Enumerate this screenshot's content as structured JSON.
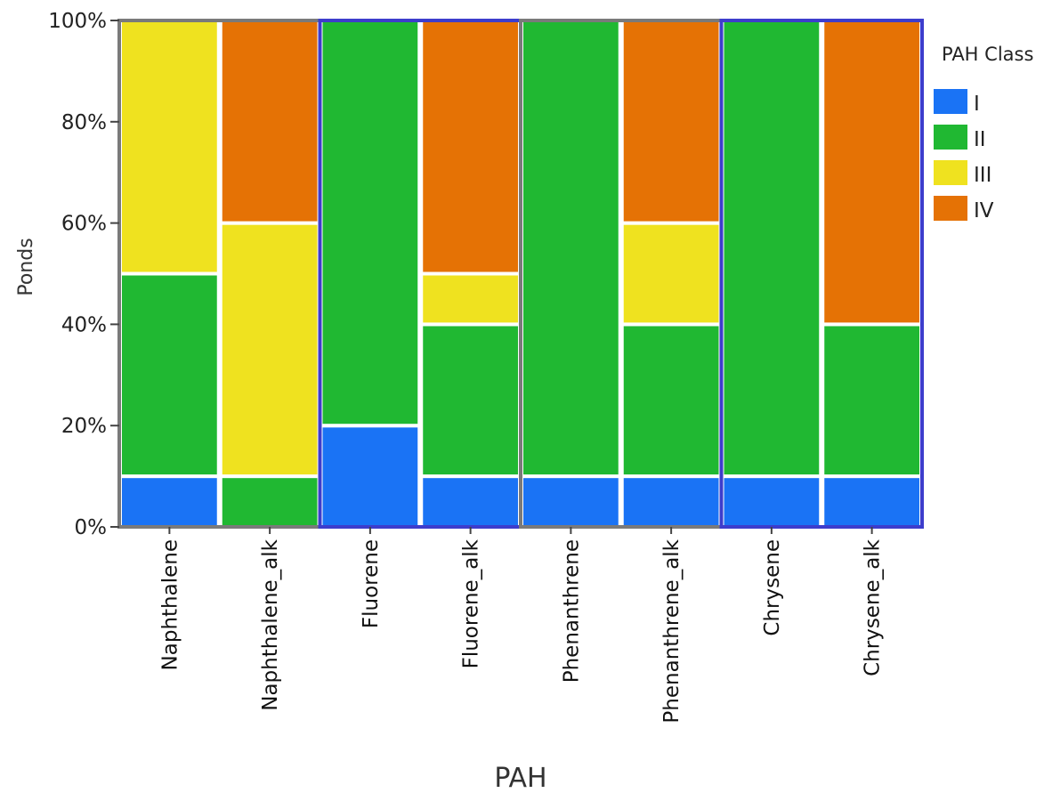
{
  "chart_data": {
    "type": "bar",
    "stacked": true,
    "xlabel": "PAH",
    "ylabel": "Ponds",
    "ylim": [
      0,
      100
    ],
    "yticks": [
      "0%",
      "20%",
      "40%",
      "60%",
      "80%",
      "100%"
    ],
    "categories": [
      "Naphthalene",
      "Naphthalene_alk",
      "Fluorene",
      "Fluorene_alk",
      "Phenanthrene",
      "Phenanthrene_alk",
      "Chrysene",
      "Chrysene_alk"
    ],
    "legend": {
      "title": "PAH Class",
      "placement": "right"
    },
    "series": [
      {
        "name": "I",
        "color": "#1a73f5",
        "values": [
          10,
          0,
          20,
          10,
          10,
          10,
          10,
          10
        ]
      },
      {
        "name": "II",
        "color": "#20b832",
        "values": [
          40,
          10,
          80,
          30,
          90,
          30,
          90,
          30
        ]
      },
      {
        "name": "III",
        "color": "#efe21f",
        "values": [
          50,
          50,
          0,
          10,
          0,
          20,
          0,
          0
        ]
      },
      {
        "name": "IV",
        "color": "#e57205",
        "values": [
          0,
          40,
          0,
          50,
          0,
          40,
          0,
          60
        ]
      }
    ],
    "group_borders": [
      {
        "categories": [
          0,
          1
        ],
        "color": "#7a7a7a"
      },
      {
        "categories": [
          2,
          3
        ],
        "color": "#3d3dcc"
      },
      {
        "categories": [
          4,
          5
        ],
        "color": "#7a7a7a"
      },
      {
        "categories": [
          6,
          7
        ],
        "color": "#3d3dcc"
      }
    ]
  }
}
